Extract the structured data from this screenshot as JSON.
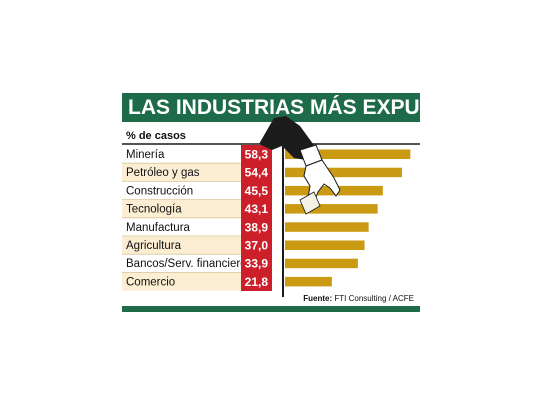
{
  "chart_data": {
    "type": "bar",
    "title": "LAS INDUSTRIAS MÁS EXPUESTAS",
    "unit_label": "% de casos",
    "categories": [
      "Minería",
      "Petróleo y gas",
      "Construcción",
      "Tecnología",
      "Manufactura",
      "Agricultura",
      "Bancos/Serv. financieros",
      "Comercio"
    ],
    "values": [
      58.3,
      54.4,
      45.5,
      43.1,
      38.9,
      37.0,
      33.9,
      21.8
    ],
    "value_labels": [
      "58,3",
      "54,4",
      "45,5",
      "43,1",
      "38,9",
      "37,0",
      "33,9",
      "21,8"
    ],
    "source_label": "Fuente:",
    "source_text": "FTI Consulting / ACFE",
    "orientation": "horizontal",
    "xlim": [
      0,
      60
    ],
    "grid": false
  },
  "colors": {
    "title_bg": "#1e6b4a",
    "bottom_band": "#1e6b4a",
    "value_column": "#cc1f2a",
    "bar": "#c99a12",
    "row_shade": "#fbeed3",
    "divider": "#d9c79a",
    "axis": "#1a1a1a",
    "sleeve": "#1c1c1c"
  },
  "illustration": "hand-reaching-icon"
}
